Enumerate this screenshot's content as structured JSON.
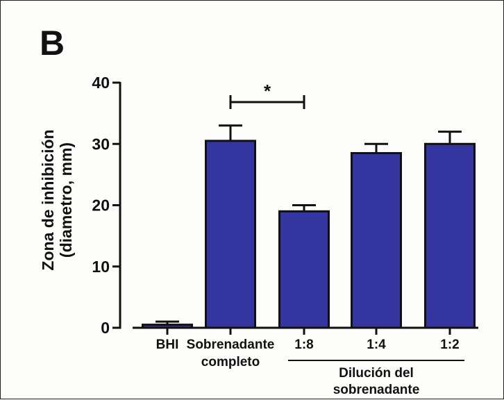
{
  "panel_label": "B",
  "chart_data": {
    "type": "bar",
    "categories": [
      "BHI",
      "Sobrenadante completo",
      "1:8",
      "1:4",
      "1:2"
    ],
    "category_lines": [
      [
        "BHI"
      ],
      [
        "Sobrenadante",
        "completo"
      ],
      [
        "1:8"
      ],
      [
        "1:4"
      ],
      [
        "1:2"
      ]
    ],
    "values": [
      0.5,
      30.5,
      19,
      28.5,
      30
    ],
    "errors": [
      0.5,
      2.5,
      1,
      1.5,
      2
    ],
    "ylabel_line1": "Zona de inhibición",
    "ylabel_line2": "(diametro, mm)",
    "ylim": [
      0,
      40
    ],
    "yticks": [
      0,
      10,
      20,
      30,
      40
    ],
    "bar_color": "#3535a0",
    "group_label_line1": "Dilución del",
    "group_label_line2": "sobrenadante",
    "significance": {
      "from": 1,
      "to": 2,
      "label": "*"
    },
    "grid": false,
    "legend": "none"
  }
}
